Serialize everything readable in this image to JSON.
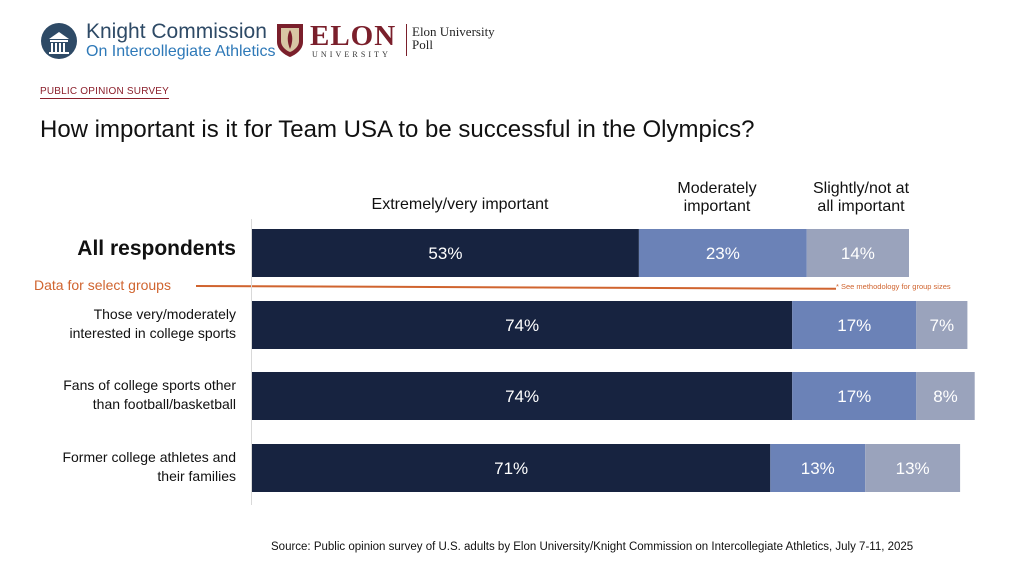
{
  "header": {
    "knight_title": "Knight Commission",
    "knight_subtitle": "On Intercollegiate Athletics",
    "elon_name": "ELON",
    "elon_university": "UNIVERSITY",
    "elon_poll_line1": "Elon University",
    "elon_poll_line2": "Poll"
  },
  "kicker": "PUBLIC OPINION SURVEY",
  "title": "How important is it for Team USA to be successful in the Olympics?",
  "group_divider": {
    "label": "Data for select groups",
    "note": "* See methodology for group sizes"
  },
  "source": "Source: Public opinion survey of U.S. adults by Elon University/Knight Commission on Intercollegiate Athletics, July 7-11, 2025",
  "colors": {
    "extremely": "#172340",
    "moderately": "#6b82b7",
    "slightly": "#9aa3bc",
    "accent": "#d0642f",
    "brand_red": "#7a1f2b"
  },
  "chart_data": {
    "type": "bar",
    "orientation": "horizontal",
    "stacked": true,
    "title": "How important is it for Team USA to be successful in the Olympics?",
    "categories": [
      "All respondents",
      "Those very/moderately interested in college sports",
      "Fans of college sports other than football/basketball",
      "Former college athletes and their families"
    ],
    "category_lines": [
      [
        "All respondents"
      ],
      [
        "Those very/moderately",
        "interested in college sports"
      ],
      [
        "Fans of college sports other",
        "than football/basketball"
      ],
      [
        "Former college athletes and",
        "their families"
      ]
    ],
    "series": [
      {
        "name": "Extremely/very important",
        "name_lines": [
          "Extremely/very important"
        ],
        "values": [
          53,
          74,
          74,
          71
        ],
        "color": "#172340"
      },
      {
        "name": "Moderately important",
        "name_lines": [
          "Moderately",
          "important"
        ],
        "values": [
          23,
          17,
          17,
          13
        ],
        "color": "#6b82b7"
      },
      {
        "name": "Slightly/not at all important",
        "name_lines": [
          "Slightly/not at",
          "all important"
        ],
        "values": [
          14,
          7,
          8,
          13
        ],
        "color": "#9aa3bc"
      }
    ],
    "data_label_format": "percent",
    "xlim": [
      0,
      100
    ]
  }
}
